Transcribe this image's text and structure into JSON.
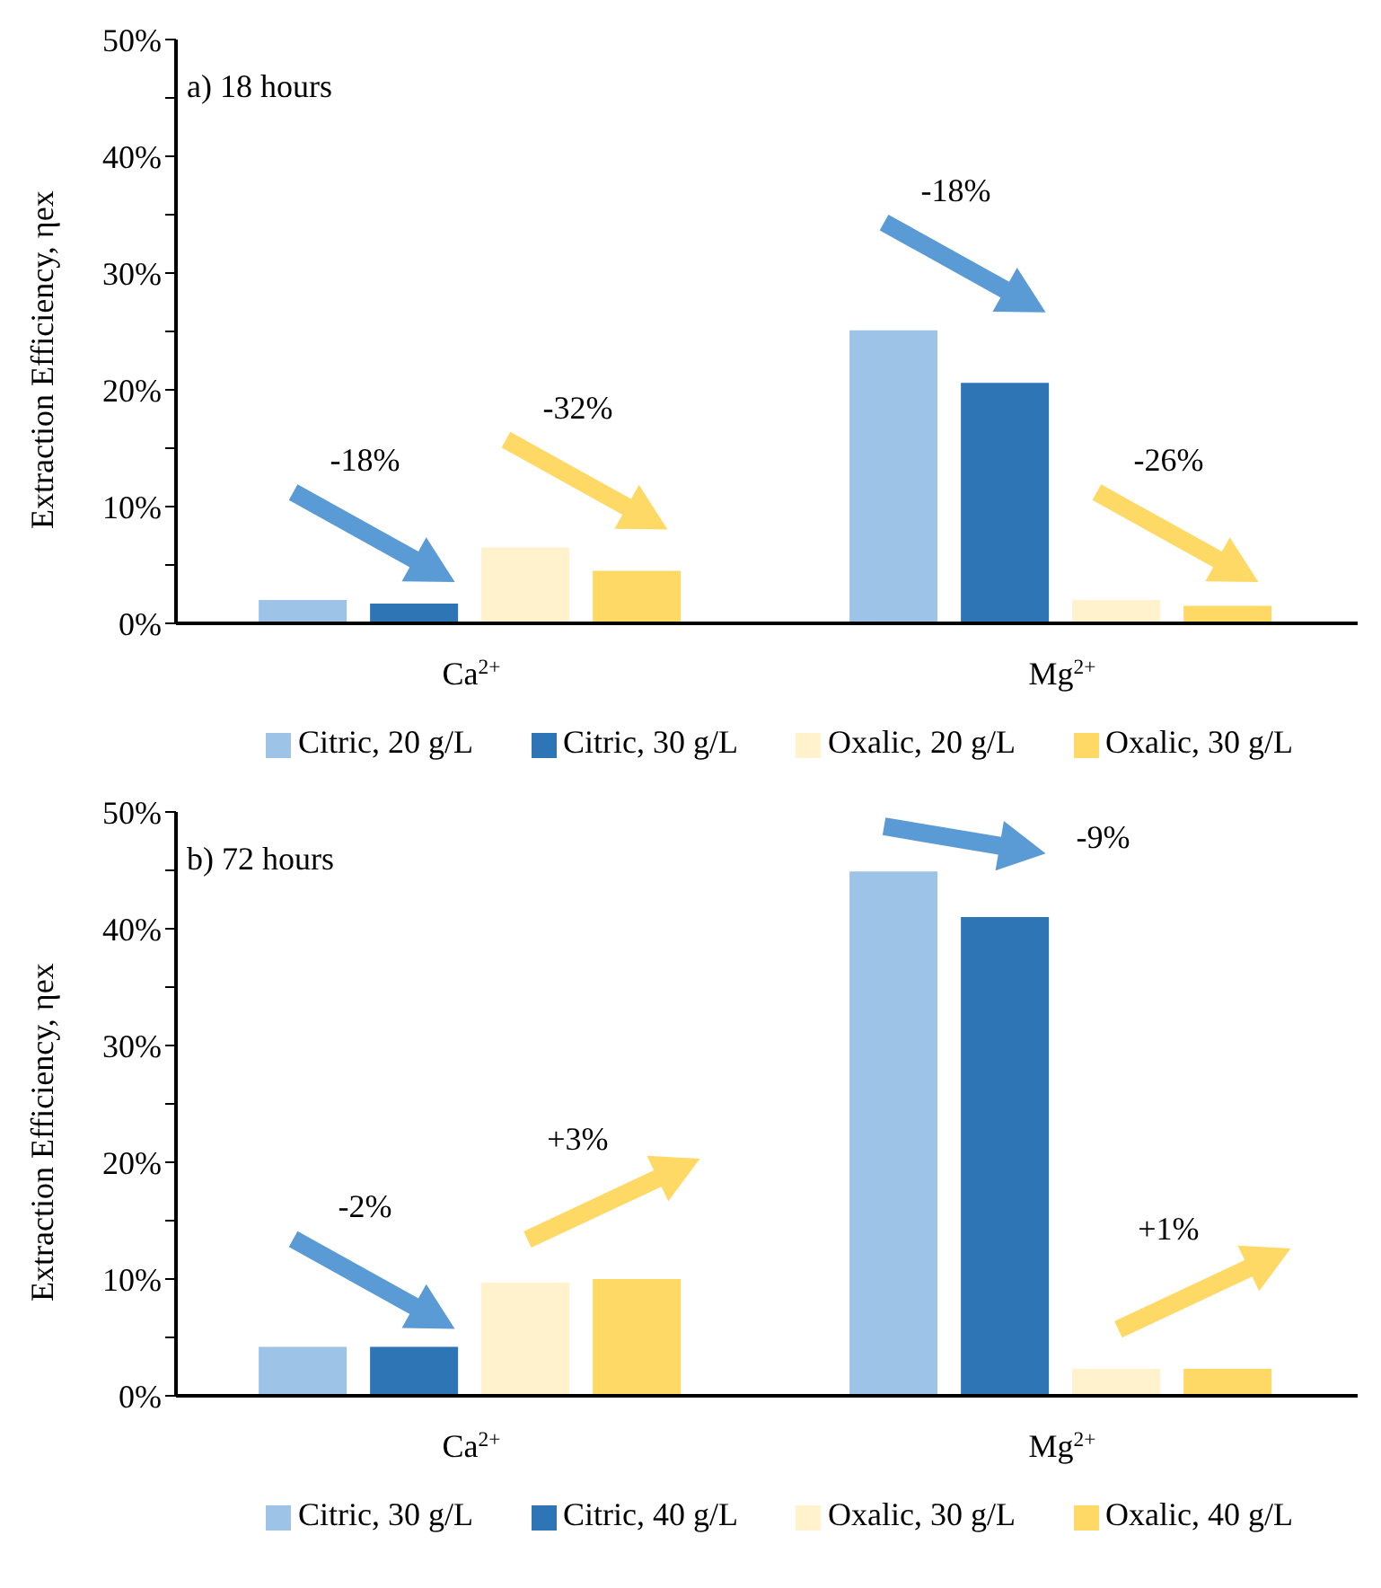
{
  "chart_data": [
    {
      "type": "bar",
      "title": "a) 18 hours",
      "ylabel": "Extraction Efficiency, ηex",
      "categories": [
        "Ca$^{2+}$",
        "Mg$^{2+}$"
      ],
      "series": [
        {
          "name": "Citric, 20 g/L",
          "color": "#9dc3e6",
          "values": [
            2.0,
            25.1
          ]
        },
        {
          "name": "Citric, 30 g/L",
          "color": "#2e75b6",
          "values": [
            1.7,
            20.6
          ]
        },
        {
          "name": "Oxalic, 20 g/L",
          "color": "#fff2cc",
          "values": [
            6.5,
            2.0
          ]
        },
        {
          "name": "Oxalic, 30 g/L",
          "color": "#ffd966",
          "values": [
            4.5,
            1.5
          ]
        }
      ],
      "ylim": [
        0,
        50
      ],
      "yticks": [
        {
          "value": 0,
          "label": "0%"
        },
        {
          "value": 5,
          "label": null
        },
        {
          "value": 10,
          "label": "10%"
        },
        {
          "value": 15,
          "label": null
        },
        {
          "value": 20,
          "label": "20%"
        },
        {
          "value": 25,
          "label": null
        },
        {
          "value": 30,
          "label": "30%"
        },
        {
          "value": 35,
          "label": null
        },
        {
          "value": 40,
          "label": "40%"
        },
        {
          "value": 45,
          "label": null
        },
        {
          "value": 50,
          "label": "50%"
        }
      ],
      "grid": false,
      "legend": "bottom",
      "annotations": [
        "-18%",
        "-32%",
        "-18%",
        "-26%"
      ]
    },
    {
      "type": "bar",
      "title": "b) 72 hours",
      "ylabel": "Extraction Efficiency, ηex",
      "categories": [
        "Ca$^{2+}$",
        "Mg$^{2+}$"
      ],
      "series": [
        {
          "name": "Citric, 30 g/L",
          "color": "#9dc3e6",
          "values": [
            4.2,
            44.9
          ]
        },
        {
          "name": "Citric, 40 g/L",
          "color": "#2e75b6",
          "values": [
            4.2,
            41.0
          ]
        },
        {
          "name": "Oxalic, 30 g/L",
          "color": "#fff2cc",
          "values": [
            9.7,
            2.3
          ]
        },
        {
          "name": "Oxalic, 40 g/L",
          "color": "#ffd966",
          "values": [
            10.0,
            2.3
          ]
        }
      ],
      "ylim": [
        0,
        50
      ],
      "yticks": [
        {
          "value": 0,
          "label": "0%"
        },
        {
          "value": 5,
          "label": null
        },
        {
          "value": 10,
          "label": "10%"
        },
        {
          "value": 15,
          "label": null
        },
        {
          "value": 20,
          "label": "20%"
        },
        {
          "value": 25,
          "label": null
        },
        {
          "value": 30,
          "label": "30%"
        },
        {
          "value": 35,
          "label": null
        },
        {
          "value": 40,
          "label": "40%"
        },
        {
          "value": 45,
          "label": null
        },
        {
          "value": 50,
          "label": "50%"
        }
      ],
      "grid": false,
      "legend": "bottom",
      "annotations": [
        "-2%",
        "+3%",
        "-9%",
        "+1%"
      ]
    }
  ]
}
